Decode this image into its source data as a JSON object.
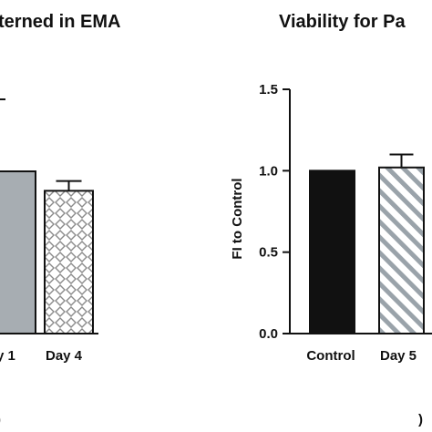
{
  "chart_data": [
    {
      "type": "bar",
      "title": "terned in EMA",
      "categories": [
        "y 1",
        "Day 4"
      ],
      "values": [
        1.0,
        0.88
      ],
      "errors": [
        null,
        0.06
      ],
      "panel_label": ")",
      "colors": [
        "#a7adb2",
        "pattern-diamond"
      ]
    },
    {
      "type": "bar",
      "title": "Viability for Pa",
      "ylabel": "FI to Control",
      "ylim": [
        0,
        1.5
      ],
      "yticks": [
        "0.0",
        "0.5",
        "1.0",
        "1.5"
      ],
      "categories": [
        "Control",
        "Day 5"
      ],
      "values": [
        1.0,
        1.02
      ],
      "errors": [
        null,
        0.08
      ],
      "panel_label": ")",
      "colors": [
        "#111111",
        "pattern-diagonal"
      ]
    }
  ]
}
